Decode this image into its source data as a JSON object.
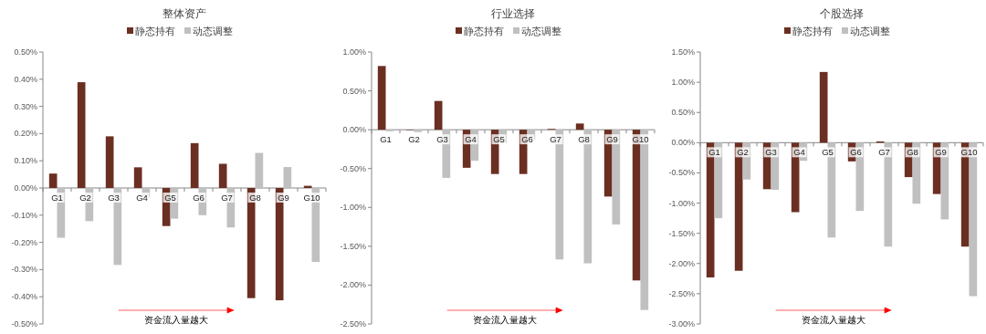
{
  "chart_data": [
    {
      "type": "bar",
      "title": "整体资产",
      "categories": [
        "G1",
        "G2",
        "G3",
        "G4",
        "G5",
        "G6",
        "G7",
        "G8",
        "G9",
        "G10"
      ],
      "legend": "top",
      "grid": false,
      "series": [
        {
          "name": "静态持有",
          "color": "#6b2f22",
          "values": [
            0.053,
            0.389,
            0.19,
            0.076,
            -0.14,
            0.165,
            0.089,
            -0.405,
            -0.413,
            0.008
          ]
        },
        {
          "name": "动态调整",
          "color": "#c0c0c0",
          "values": [
            -0.183,
            -0.122,
            -0.283,
            -0.034,
            -0.113,
            -0.1,
            -0.145,
            0.129,
            0.077,
            -0.272
          ]
        }
      ],
      "ylim": [
        -0.5,
        0.5
      ],
      "yticks": [
        {
          "value": -0.5,
          "label": "-0.50%"
        },
        {
          "value": -0.4,
          "label": "-0.40%"
        },
        {
          "value": -0.3,
          "label": "-0.30%"
        },
        {
          "value": -0.2,
          "label": "-0.20%"
        },
        {
          "value": -0.1,
          "label": "-0.10%"
        },
        {
          "value": 0,
          "label": "0.00%"
        },
        {
          "value": 0.1,
          "label": "0.10%"
        },
        {
          "value": 0.2,
          "label": "0.20%"
        },
        {
          "value": 0.3,
          "label": "0.30%"
        },
        {
          "value": 0.4,
          "label": "0.40%"
        },
        {
          "value": 0.5,
          "label": "0.50%"
        }
      ],
      "annotations": [
        "资金流入量越大"
      ]
    },
    {
      "type": "bar",
      "title": "行业选择",
      "categories": [
        "G1",
        "G2",
        "G3",
        "G4",
        "G5",
        "G6",
        "G7",
        "G8",
        "G9",
        "G10"
      ],
      "legend": "top",
      "grid": false,
      "series": [
        {
          "name": "静态持有",
          "color": "#6b2f22",
          "values": [
            0.82,
            0,
            0.37,
            -0.49,
            -0.57,
            -0.57,
            0.01,
            0.08,
            -0.86,
            -1.94
          ]
        },
        {
          "name": "动态调整",
          "color": "#c0c0c0",
          "values": [
            -0.02,
            -0.03,
            -0.62,
            -0.4,
            -0.17,
            -0.13,
            -1.67,
            -1.72,
            -1.22,
            -2.32
          ]
        }
      ],
      "ylim": [
        -2.5,
        1
      ],
      "yticks": [
        {
          "value": -2.5,
          "label": "-2.50%"
        },
        {
          "value": -2,
          "label": "-2.00%"
        },
        {
          "value": -1.5,
          "label": "-1.50%"
        },
        {
          "value": -1,
          "label": "-1.00%"
        },
        {
          "value": -0.5,
          "label": "-0.50%"
        },
        {
          "value": 0,
          "label": "0.00%"
        },
        {
          "value": 0.5,
          "label": "0.50%"
        },
        {
          "value": 1,
          "label": "1.00%"
        }
      ],
      "annotations": [
        "资金流入量越大"
      ]
    },
    {
      "type": "bar",
      "title": "个股选择",
      "categories": [
        "G1",
        "G2",
        "G3",
        "G4",
        "G5",
        "G6",
        "G7",
        "G8",
        "G9",
        "G10"
      ],
      "legend": "top",
      "grid": false,
      "series": [
        {
          "name": "静态持有",
          "color": "#6b2f22",
          "values": [
            -2.23,
            -2.12,
            -0.77,
            -1.15,
            1.17,
            -0.31,
            0.02,
            -0.57,
            -0.85,
            -1.72
          ]
        },
        {
          "name": "动态调整",
          "color": "#c0c0c0",
          "values": [
            -1.25,
            -0.61,
            -0.78,
            -0.3,
            -1.57,
            -1.13,
            -1.72,
            -1.01,
            -1.27,
            -2.54
          ]
        }
      ],
      "ylim": [
        -3,
        1.5
      ],
      "yticks": [
        {
          "value": -3,
          "label": "-3.00%"
        },
        {
          "value": -2.5,
          "label": "-2.50%"
        },
        {
          "value": -2,
          "label": "-2.00%"
        },
        {
          "value": -1.5,
          "label": "-1.50%"
        },
        {
          "value": -1,
          "label": "-1.00%"
        },
        {
          "value": -0.5,
          "label": "-0.50%"
        },
        {
          "value": 0,
          "label": "0.00%"
        },
        {
          "value": 0.5,
          "label": "0.50%"
        },
        {
          "value": 1,
          "label": "1.00%"
        },
        {
          "value": 1.5,
          "label": "1.50%"
        }
      ],
      "annotations": [
        "资金流入量越大"
      ]
    }
  ]
}
